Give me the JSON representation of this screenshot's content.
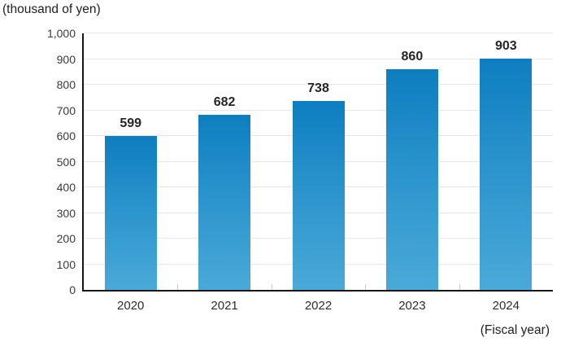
{
  "chart_data": {
    "type": "bar",
    "title": "",
    "unit_label": "(thousand of yen)",
    "axis_note": "(Fiscal year)",
    "categories": [
      "2020",
      "2021",
      "2022",
      "2023",
      "2024"
    ],
    "values": [
      599,
      682,
      738,
      860,
      903
    ],
    "xlabel": "Fiscal year",
    "ylabel": "thousand of yen",
    "ylim": [
      0,
      1000
    ],
    "ytick_step": 100,
    "yticks": [
      "0",
      "100",
      "200",
      "300",
      "400",
      "500",
      "600",
      "700",
      "800",
      "900",
      "1,000"
    ],
    "grid": true,
    "legend_position": "none",
    "colors": {
      "bar_gradient_top": "#0d7ec0",
      "bar_gradient_bottom": "#4aa9d8",
      "gridline": "#e7e7e7",
      "axis": "#161616",
      "value_label": "#262626",
      "tick_label": "#3a3a3a"
    }
  }
}
